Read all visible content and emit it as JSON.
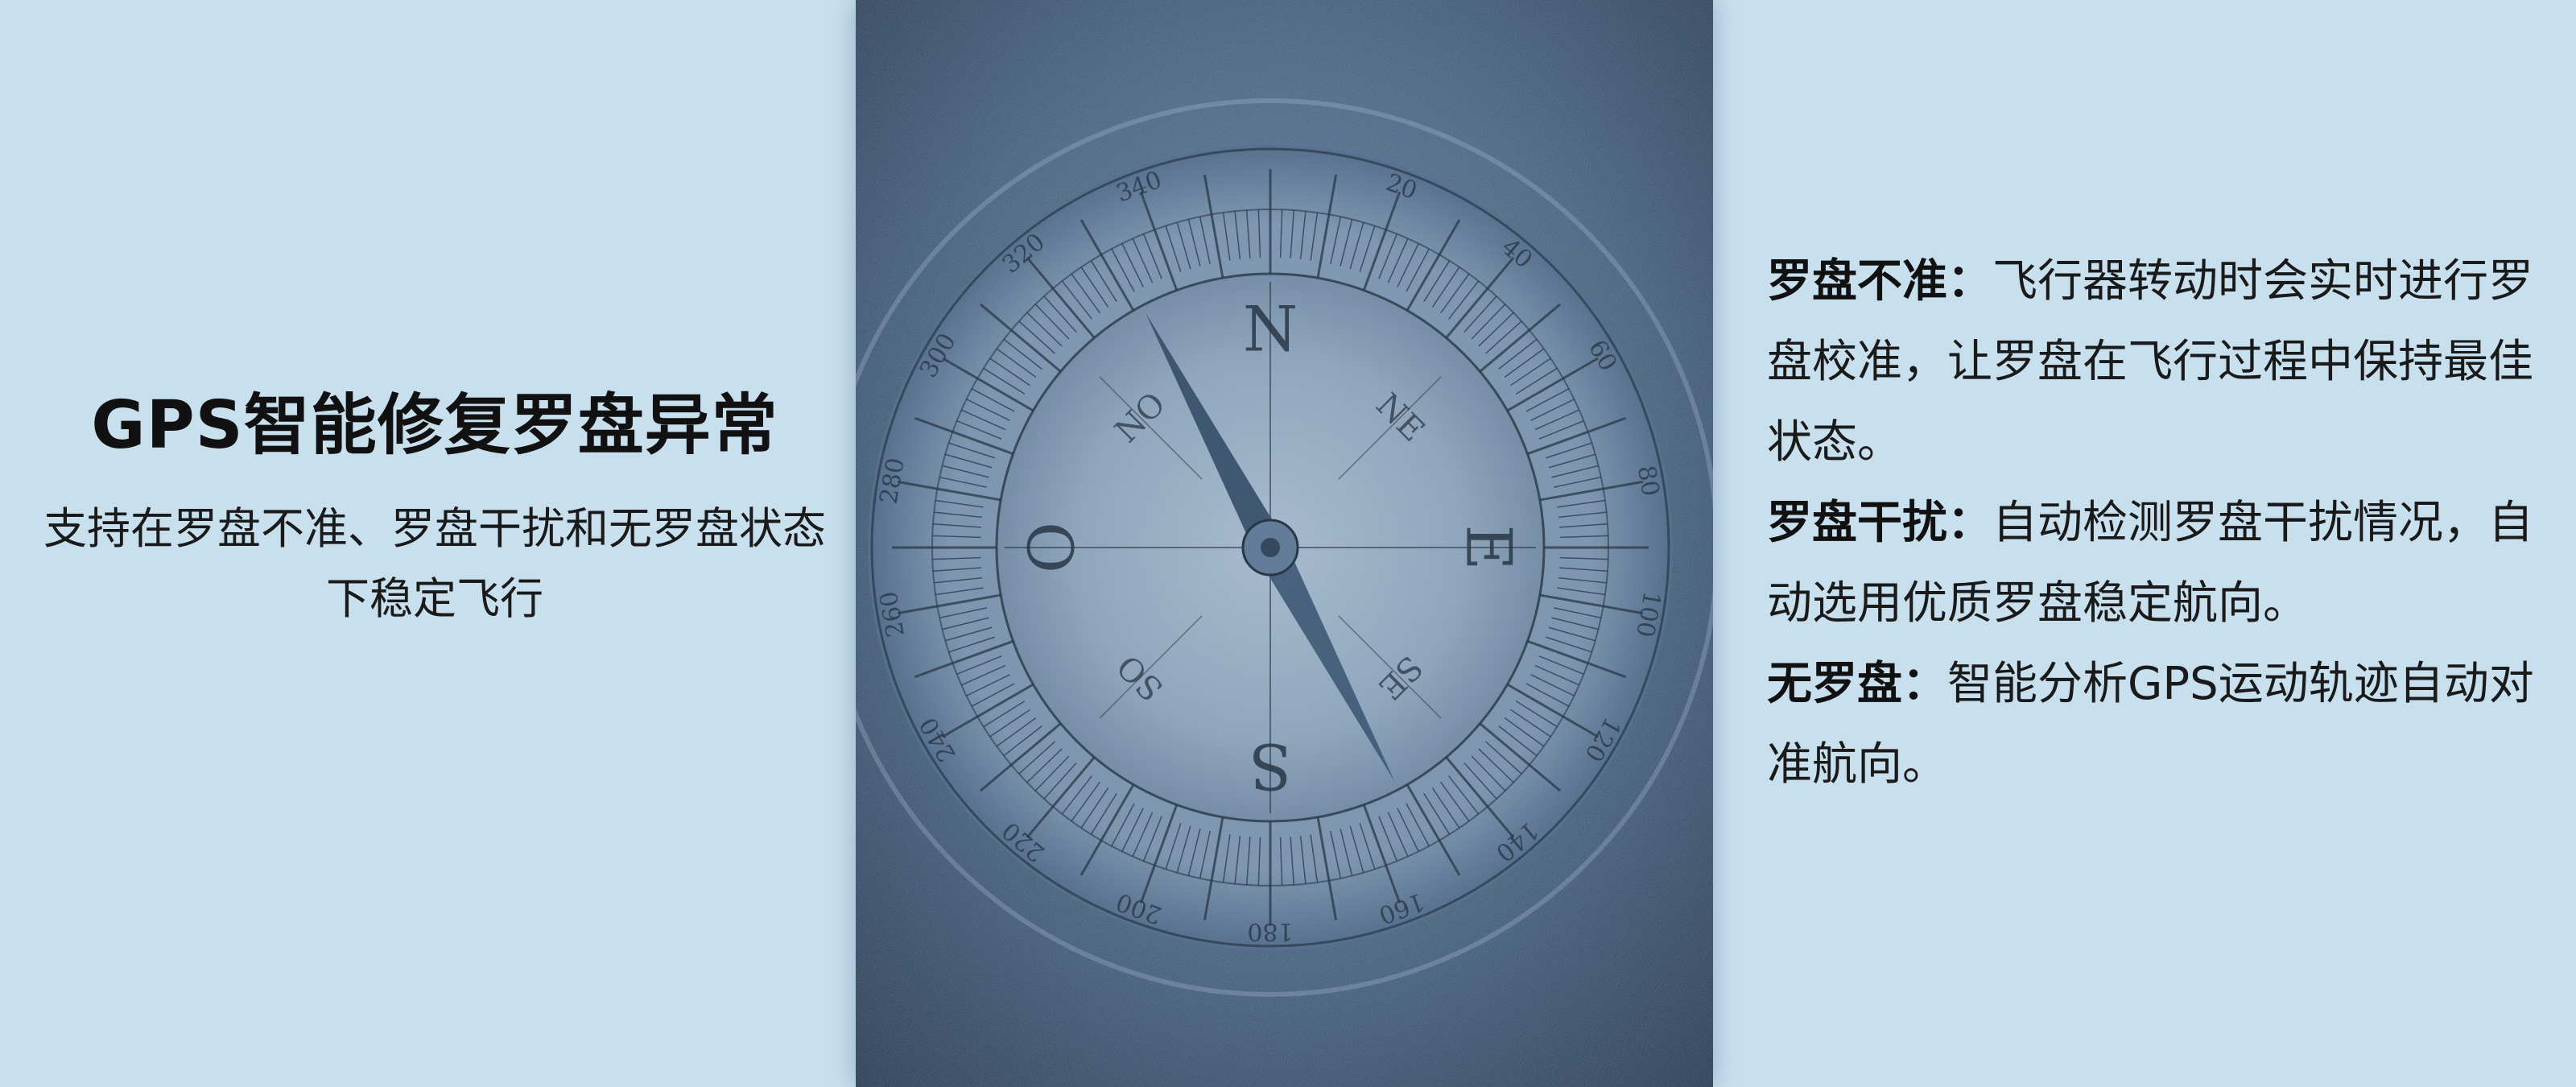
{
  "left": {
    "title": "GPS智能修复罗盘异常",
    "subtitle": "支持在罗盘不准、罗盘干扰和无罗盘状态下稳定飞行"
  },
  "right": {
    "items": [
      {
        "label": "罗盘不准：",
        "text": "飞行器转动时会实时进行罗盘校准，让罗盘在飞行过程中保持最佳状态。"
      },
      {
        "label": "罗盘干扰：",
        "text": "自动检测罗盘干扰情况，自动选用优质罗盘稳定航向。"
      },
      {
        "label": "无罗盘：",
        "text": "智能分析GPS运动轨迹自动对准航向。"
      }
    ]
  },
  "compass": {
    "cardinals": [
      "N",
      "E",
      "S",
      "O"
    ],
    "intercardinals": [
      "NE",
      "SE",
      "SO",
      "NO"
    ],
    "degree_labels": [
      "20",
      "40",
      "60",
      "80",
      "100",
      "120",
      "140",
      "160",
      "180",
      "200",
      "220",
      "240",
      "260",
      "280",
      "300",
      "320",
      "340"
    ]
  },
  "colors": {
    "background": "#c8e0ee",
    "compass_dark": "#1f3650",
    "compass_light": "#8ea8c0",
    "ink": "#1e2d3d"
  }
}
